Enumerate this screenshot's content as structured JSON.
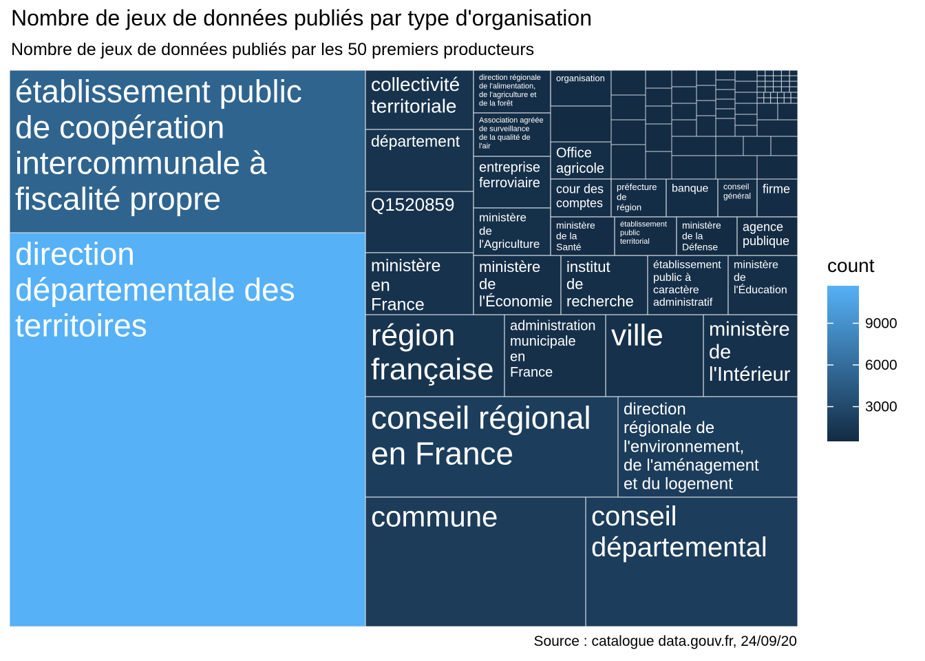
{
  "title": "Nombre de jeux de données publiés par type d'organisation",
  "subtitle": "Nombre de jeux de données publiés par les 50 premiers producteurs",
  "caption": "Source : catalogue data.gouv.fr, 24/09/20",
  "chart_data": {
    "type": "treemap",
    "legend": {
      "title": "count",
      "ticks": [
        3000,
        6000,
        9000
      ],
      "range": [
        500,
        11700
      ],
      "color_low": "#132B43",
      "color_high": "#56B1F7"
    },
    "tiles": [
      {
        "label": "direction départementale des territoires",
        "value": 11700
      },
      {
        "label": "établissement public de coopération intercommunale à fiscalité propre",
        "value": 5250
      },
      {
        "label": "conseil régional en France",
        "value": 2050
      },
      {
        "label": "conseil départemental",
        "value": 2000
      },
      {
        "label": "commune",
        "value": 1950
      },
      {
        "label": "direction régionale de l'environnement, de l'aménagement et du logement",
        "value": 1900
      },
      {
        "label": "région française",
        "value": 1300
      },
      {
        "label": "collectivité territoriale",
        "value": 1200
      },
      {
        "label": "département",
        "value": 1150
      },
      {
        "label": "Q1520859",
        "value": 1100
      },
      {
        "label": "ministère en France",
        "value": 1050
      },
      {
        "label": "ministère de l'Intérieur",
        "value": 1000
      },
      {
        "label": "ville",
        "value": 1000
      },
      {
        "label": "administration municipale en France",
        "value": 950
      },
      {
        "label": "entreprise ferroviaire",
        "value": 900
      },
      {
        "label": "ministère de l'Agriculture",
        "value": 880
      },
      {
        "label": "ministère de l'Économie",
        "value": 860
      },
      {
        "label": "institut de recherche",
        "value": 840
      },
      {
        "label": "établissement public à caractère administratif",
        "value": 820
      },
      {
        "label": "ministère de l'Éducation",
        "value": 800
      },
      {
        "label": "direction régionale de l'alimentation, de l'agriculture et de la forêt",
        "value": 780
      },
      {
        "label": "Association agréée de surveillance de la qualité de l'air",
        "value": 760
      },
      {
        "label": "Office agricole",
        "value": 740
      },
      {
        "label": "cour des comptes",
        "value": 720
      },
      {
        "label": "organisation",
        "value": 700
      },
      {
        "label": "préfecture de région",
        "value": 680
      },
      {
        "label": "banque",
        "value": 660
      },
      {
        "label": "conseil général",
        "value": 640
      },
      {
        "label": "firme",
        "value": 620
      },
      {
        "label": "ministère de la Santé",
        "value": 600
      },
      {
        "label": "établissement public territorial",
        "value": 590
      },
      {
        "label": "ministère de la Défense",
        "value": 580
      },
      {
        "label": "agence publique",
        "value": 570
      }
    ]
  }
}
